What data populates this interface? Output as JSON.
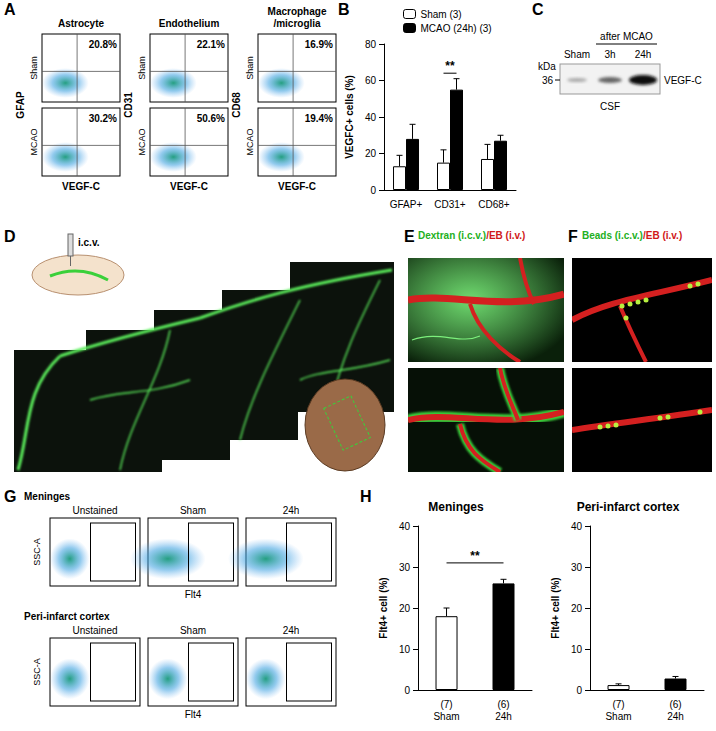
{
  "panel_letters": [
    "A",
    "B",
    "C",
    "D",
    "E",
    "F",
    "G",
    "H"
  ],
  "panel_A": {
    "columns": [
      {
        "title": "Astrocyte",
        "y_label": "GFAP",
        "percents": [
          "20.8%",
          "30.2%"
        ]
      },
      {
        "title": "Endothelium",
        "y_label": "CD31",
        "percents": [
          "22.1%",
          "50.6%"
        ]
      },
      {
        "title": "Macrophage /microglia",
        "y_label": "CD68",
        "percents": [
          "16.9%",
          "19.4%"
        ]
      }
    ],
    "rows": [
      "Sham",
      "MCAO"
    ],
    "x_label": "VEGF-C"
  },
  "panel_C": {
    "size_unit": "kDa",
    "size_mark": "36",
    "lanes": [
      "Sham",
      "3h",
      "24h"
    ],
    "group_label": "after MCAO",
    "band_label": "VEGF-C",
    "sample": "CSF"
  },
  "panel_D": {
    "injection": "i.c.v."
  },
  "panel_E": {
    "title_parts": [
      {
        "text": "Dextran (i.c.v.)",
        "color": "#22b022"
      },
      {
        "text": "/EB (i.v.)",
        "color": "#d01818"
      }
    ]
  },
  "panel_F": {
    "title_parts": [
      {
        "text": "Beads (i.c.v.)",
        "color": "#22b022"
      },
      {
        "text": "/EB (i.v.)",
        "color": "#d01818"
      }
    ]
  },
  "panel_G": {
    "rows": [
      "Meninges",
      "Peri-infarct cortex"
    ],
    "columns": [
      "Unstained",
      "Sham",
      "24h"
    ],
    "y_label": "SSC-A",
    "x_label": "Flt4"
  },
  "chart_data": [
    {
      "type": "bar",
      "categories": [
        "GFAP+",
        "CD31+",
        "CD68+"
      ],
      "y_label": "VEGFC+ cells (%)",
      "ylim": [
        0,
        80
      ],
      "yticks": [
        0,
        20,
        40,
        60,
        80
      ],
      "grid": false,
      "legend": "top",
      "series": [
        {
          "name": "Sham (3)",
          "color": "#ffffff",
          "values": [
            13,
            15,
            17
          ],
          "errors": [
            6,
            7,
            8
          ]
        },
        {
          "name": "MCAO (24h) (3)",
          "color": "#000000",
          "values": [
            28,
            55,
            27
          ],
          "errors": [
            8,
            6,
            3
          ]
        }
      ],
      "annotations": [
        {
          "text": "**",
          "from": "CD31+",
          "to": "CD31+",
          "y": 64
        }
      ]
    },
    {
      "type": "bar",
      "title": "Meninges",
      "categories": [
        "Sham",
        "24h"
      ],
      "n_labels": [
        "(7)",
        "(6)"
      ],
      "y_label": "Flt4+ cell (%)",
      "ylim": [
        0,
        40
      ],
      "yticks": [
        0,
        10,
        20,
        30,
        40
      ],
      "grid": false,
      "values": [
        18,
        26
      ],
      "errors": [
        2,
        1
      ],
      "colors": [
        "#ffffff",
        "#000000"
      ],
      "annotations": [
        {
          "text": "**",
          "from": "Sham",
          "to": "24h",
          "y": 31
        }
      ]
    },
    {
      "type": "bar",
      "title": "Peri-infarct cortex",
      "categories": [
        "Sham",
        "24h"
      ],
      "n_labels": [
        "(7)",
        "(6)"
      ],
      "y_label": "Flt4+ cell (%)",
      "ylim": [
        0,
        40
      ],
      "yticks": [
        0,
        10,
        20,
        30,
        40
      ],
      "grid": false,
      "values": [
        1.2,
        2.8
      ],
      "errors": [
        0.3,
        0.5
      ],
      "colors": [
        "#ffffff",
        "#000000"
      ]
    }
  ]
}
